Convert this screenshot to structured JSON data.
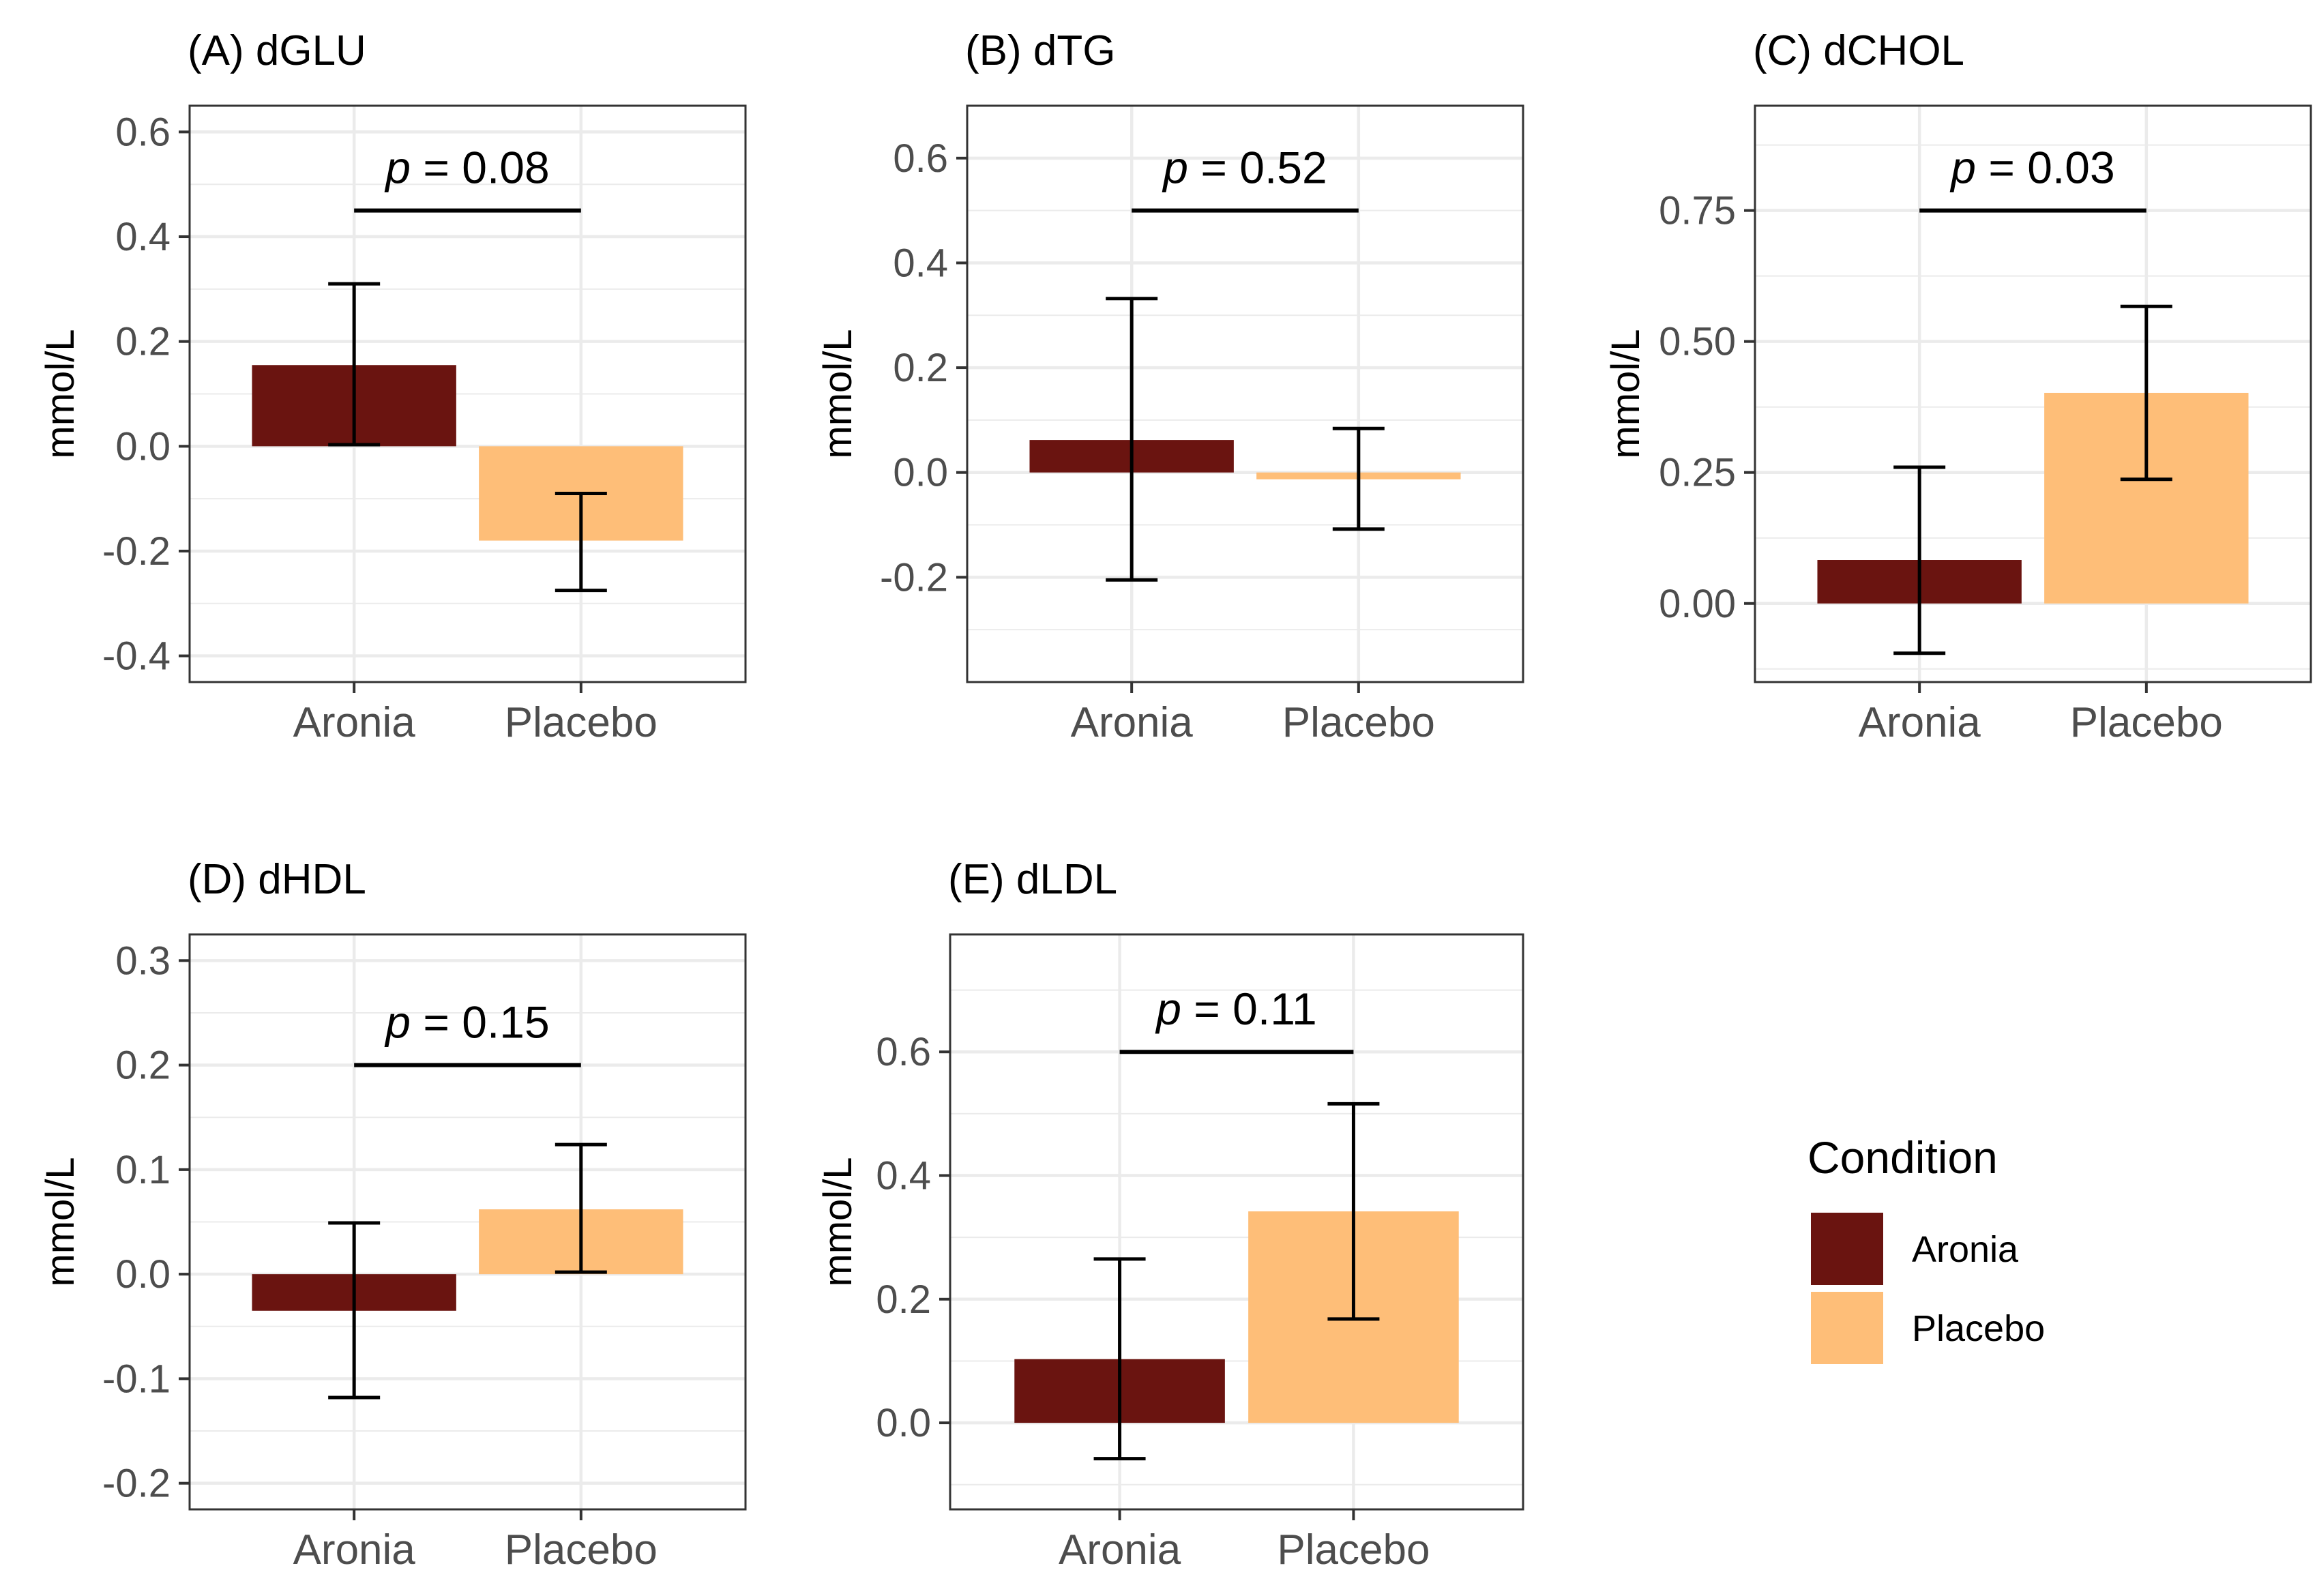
{
  "chart_data": [
    {
      "type": "bar",
      "title": "(A) dGLU",
      "ylabel": "mmol/L",
      "categories": [
        "Aronia",
        "Placebo"
      ],
      "values": [
        0.155,
        -0.18
      ],
      "err_low": [
        0.003,
        -0.275
      ],
      "err_high": [
        0.31,
        -0.09
      ],
      "ylim": [
        -0.45,
        0.65
      ],
      "yticks": [
        -0.4,
        -0.2,
        0.0,
        0.2,
        0.4,
        0.6
      ],
      "ytick_labels": [
        "-0.4",
        "-0.2",
        "0.0",
        "0.2",
        "0.4",
        "0.6"
      ],
      "bracket_y": 0.45,
      "p_prefix": "p",
      "p_value": " = 0.08"
    },
    {
      "type": "bar",
      "title": "(B) dTG",
      "ylabel": "mmol/L",
      "categories": [
        "Aronia",
        "Placebo"
      ],
      "values": [
        0.062,
        -0.013
      ],
      "err_low": [
        -0.205,
        -0.108
      ],
      "err_high": [
        0.332,
        0.084
      ],
      "ylim": [
        -0.4,
        0.7
      ],
      "yticks": [
        -0.2,
        0.0,
        0.2,
        0.4,
        0.6
      ],
      "ytick_labels": [
        "-0.2",
        "0.0",
        "0.2",
        "0.4",
        "0.6"
      ],
      "bracket_y": 0.5,
      "p_prefix": "p",
      "p_value": " = 0.52"
    },
    {
      "type": "bar",
      "title": "(C) dCHOL",
      "ylabel": "mmol/L",
      "categories": [
        "Aronia",
        "Placebo"
      ],
      "values": [
        0.083,
        0.402
      ],
      "err_low": [
        -0.095,
        0.237
      ],
      "err_high": [
        0.26,
        0.567
      ],
      "ylim": [
        -0.15,
        0.95
      ],
      "yticks": [
        0.0,
        0.25,
        0.5,
        0.75
      ],
      "ytick_labels": [
        "0.00",
        "0.25",
        "0.50",
        "0.75"
      ],
      "bracket_y": 0.75,
      "p_prefix": "p",
      "p_value": " = 0.03"
    },
    {
      "type": "bar",
      "title": "(D) dHDL",
      "ylabel": "mmol/L",
      "categories": [
        "Aronia",
        "Placebo"
      ],
      "values": [
        -0.035,
        0.062
      ],
      "err_low": [
        -0.118,
        0.002
      ],
      "err_high": [
        0.049,
        0.124
      ],
      "ylim": [
        -0.225,
        0.325
      ],
      "yticks": [
        -0.2,
        -0.1,
        0.0,
        0.1,
        0.2,
        0.3
      ],
      "ytick_labels": [
        "-0.2",
        "-0.1",
        "0.0",
        "0.1",
        "0.2",
        "0.3"
      ],
      "bracket_y": 0.2,
      "p_prefix": "p",
      "p_value": " = 0.15"
    },
    {
      "type": "bar",
      "title": "(E) dLDL",
      "ylabel": "mmol/L",
      "categories": [
        "Aronia",
        "Placebo"
      ],
      "values": [
        0.103,
        0.342
      ],
      "err_low": [
        -0.058,
        0.168
      ],
      "err_high": [
        0.265,
        0.516
      ],
      "ylim": [
        -0.14,
        0.79
      ],
      "yticks": [
        0.0,
        0.2,
        0.4,
        0.6
      ],
      "ytick_labels": [
        "0.0",
        "0.2",
        "0.4",
        "0.6"
      ],
      "bracket_y": 0.6,
      "p_prefix": "p",
      "p_value": " = 0.11"
    }
  ],
  "legend": {
    "title": "Condition",
    "items": [
      {
        "label": "Aronia",
        "color": "#6a1410"
      },
      {
        "label": "Placebo",
        "color": "#febe78"
      }
    ]
  },
  "colors": {
    "aronia": "#6a1410",
    "placebo": "#febe78",
    "grid": "#ebebeb",
    "axis_text": "#4d4d4d",
    "panel_border": "#333333"
  }
}
